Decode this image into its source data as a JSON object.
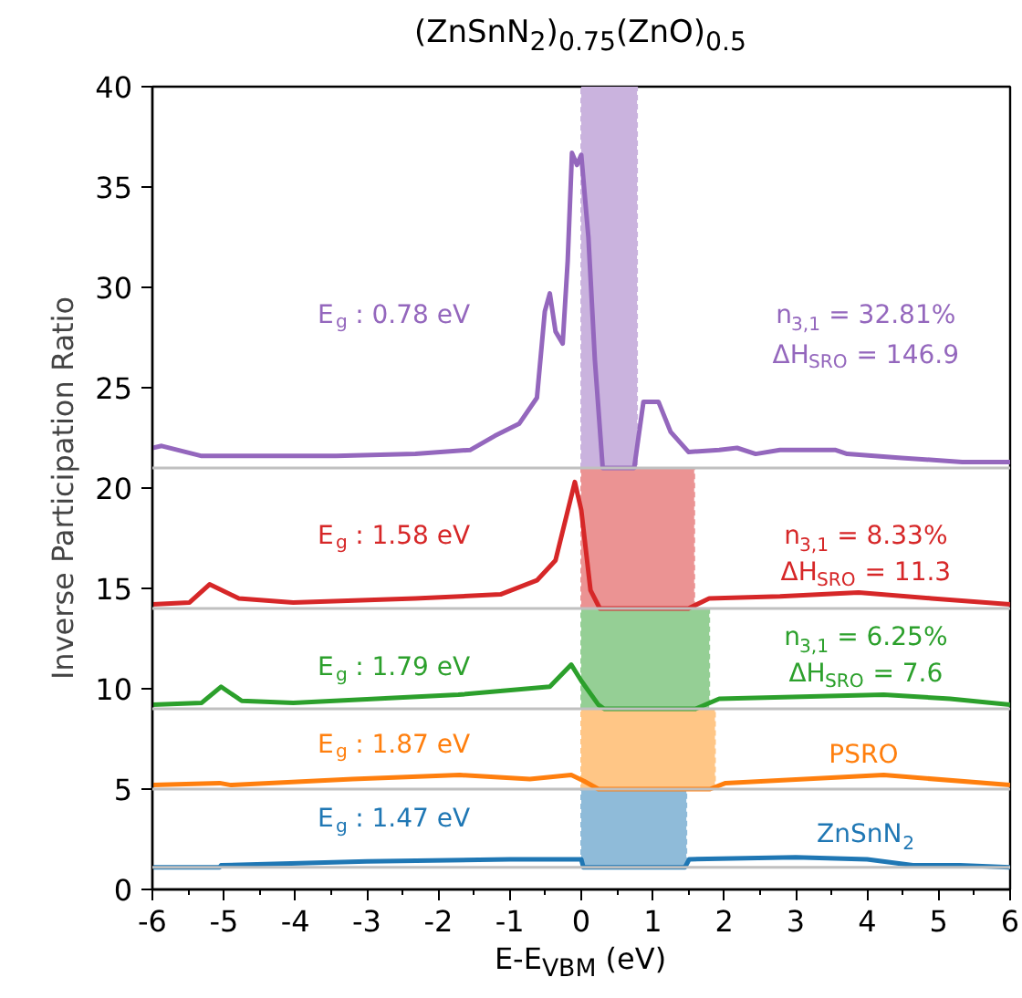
{
  "chart_data": {
    "type": "line",
    "title": "(ZnSnN$_{2}$)$_{0.75}$(ZnO)$_{0.5}$",
    "xlabel": "E-E$_{VBM}$ (eV)",
    "ylabel": "Inverse Participation Ratio",
    "xlim": [
      -6,
      6
    ],
    "ylim": [
      0,
      40
    ],
    "xticks": [
      -6,
      -5,
      -4,
      -3,
      -2,
      -1,
      0,
      1,
      2,
      3,
      4,
      5,
      6
    ],
    "yticks": [
      0,
      5,
      10,
      15,
      20,
      25,
      30,
      35,
      40
    ],
    "grid": false,
    "line_style": "solid",
    "marker": "none",
    "series": [
      {
        "name": "ZnSnN$_{2}$",
        "color": "#1f77b4",
        "x": [
          -6,
          -5.06,
          -5.04,
          -3.0,
          -1.0,
          0.0,
          0.03,
          1.45,
          1.51,
          3.0,
          4.0,
          4.64,
          5.3,
          6
        ],
        "values": [
          1.1,
          1.1,
          1.2,
          1.4,
          1.5,
          1.5,
          1.1,
          1.1,
          1.5,
          1.6,
          1.5,
          1.2,
          1.2,
          1.1
        ]
      },
      {
        "name": "PSRO",
        "color": "#ff7f0e",
        "x": [
          -6,
          -5.06,
          -4.9,
          -3.2,
          -1.7,
          -0.72,
          -0.14,
          0.04,
          0.24,
          1.8,
          2.02,
          4.23,
          6
        ],
        "values": [
          5.2,
          5.3,
          5.2,
          5.5,
          5.7,
          5.5,
          5.7,
          5.4,
          5.0,
          5.0,
          5.3,
          5.7,
          5.2
        ]
      },
      {
        "color": "#2ca02c",
        "x": [
          -6,
          -5.31,
          -5.04,
          -4.75,
          -4.03,
          -1.72,
          -0.44,
          -0.14,
          0.0,
          0.24,
          0.32,
          1.6,
          1.93,
          4.23,
          5.16,
          6
        ],
        "values": [
          9.2,
          9.3,
          10.1,
          9.4,
          9.3,
          9.7,
          10.1,
          11.2,
          10.4,
          9.2,
          9.0,
          9.0,
          9.5,
          9.7,
          9.5,
          9.2
        ]
      },
      {
        "color": "#d62728",
        "x": [
          -6,
          -5.48,
          -5.2,
          -4.79,
          -4.03,
          -2.32,
          -1.13,
          -0.62,
          -0.36,
          -0.09,
          0.0,
          0.13,
          0.26,
          1.5,
          1.79,
          2.78,
          3.88,
          4.9,
          6
        ],
        "values": [
          14.2,
          14.3,
          15.2,
          14.5,
          14.3,
          14.5,
          14.7,
          15.4,
          16.4,
          20.3,
          18.9,
          14.9,
          14.0,
          14.0,
          14.5,
          14.6,
          14.8,
          14.5,
          14.2
        ]
      },
      {
        "color": "#9467bd",
        "x": [
          -6,
          -5.87,
          -5.31,
          -4.46,
          -3.43,
          -2.32,
          -1.55,
          -1.21,
          -0.87,
          -0.62,
          -0.51,
          -0.44,
          -0.36,
          -0.26,
          -0.19,
          -0.13,
          -0.06,
          0.0,
          0.1,
          0.19,
          0.3,
          0.74,
          0.87,
          1.08,
          1.25,
          1.5,
          1.93,
          2.18,
          2.44,
          2.78,
          3.55,
          3.72,
          4.48,
          5.33,
          6
        ],
        "values": [
          22.0,
          22.1,
          21.6,
          21.6,
          21.6,
          21.7,
          21.9,
          22.6,
          23.2,
          24.5,
          28.8,
          29.7,
          27.8,
          27.2,
          31.3,
          36.7,
          36.1,
          36.6,
          32.5,
          26.4,
          21.0,
          21.0,
          24.3,
          24.3,
          22.8,
          21.8,
          21.9,
          22.0,
          21.7,
          21.9,
          21.9,
          21.7,
          21.5,
          21.3,
          21.3
        ]
      }
    ],
    "ref_lines": [
      {
        "axis": "y",
        "value": 1.1,
        "color": "#c0c0c0"
      },
      {
        "axis": "y",
        "value": 5.0,
        "color": "#c0c0c0"
      },
      {
        "axis": "y",
        "value": 9.0,
        "color": "#c0c0c0"
      },
      {
        "axis": "y",
        "value": 14.0,
        "color": "#c0c0c0"
      },
      {
        "axis": "y",
        "value": 21.0,
        "color": "#c0c0c0"
      }
    ],
    "bands": [
      {
        "axis": "x",
        "from": 0,
        "to": 1.47,
        "color": "#8fbbd9"
      },
      {
        "axis": "x",
        "from": 0,
        "to": 1.87,
        "color": "#ffc686"
      },
      {
        "axis": "x",
        "from": 0,
        "to": 1.79,
        "color": "#95cf95"
      },
      {
        "axis": "x",
        "from": 0,
        "to": 1.58,
        "color": "#eb9393"
      },
      {
        "axis": "x",
        "from": 0,
        "to": 0.78,
        "color": "#cab3de"
      }
    ],
    "annotations": [
      "E$_{g}$ : 1.47 eV",
      "E$_{g}$ : 1.87 eV",
      "E$_{g}$ : 1.79 eV",
      "E$_{g}$ : 1.58 eV",
      "E$_{g}$ : 0.78 eV",
      "n$_{3,1}$ = 6.25%",
      "ΔH$_{SRO}$ = 7.6",
      "n$_{3,1}$ = 8.33%",
      "ΔH$_{SRO}$ = 11.3",
      "n$_{3,1}$ = 32.81%",
      "ΔH$_{SRO}$ = 146.9"
    ]
  }
}
